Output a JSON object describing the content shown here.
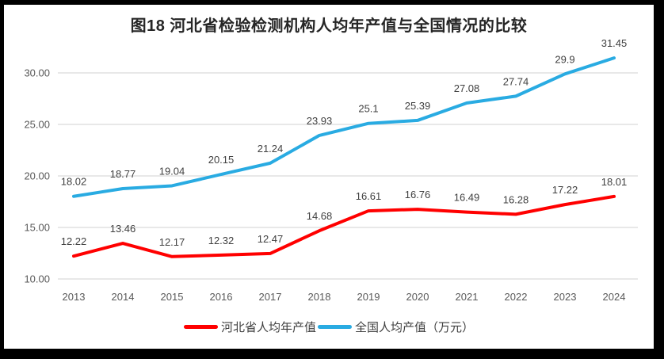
{
  "chart_data": {
    "type": "line",
    "title": "图18  河北省检验检测机构人均年产值与全国情况的比较",
    "categories": [
      "2013",
      "2014",
      "2015",
      "2016",
      "2017",
      "2018",
      "2019",
      "2020",
      "2021",
      "2022",
      "2023",
      "2024"
    ],
    "series": [
      {
        "name": "河北省人均年产值",
        "color": "#FF0000",
        "values": [
          12.22,
          13.46,
          12.17,
          12.32,
          12.47,
          14.68,
          16.61,
          16.76,
          16.49,
          16.28,
          17.22,
          18.01
        ]
      },
      {
        "name": "全国人均产值（万元）",
        "color": "#29ABE2",
        "values": [
          18.02,
          18.77,
          19.04,
          20.15,
          21.24,
          23.93,
          25.1,
          25.39,
          27.08,
          27.74,
          29.9,
          31.45
        ]
      }
    ],
    "ylim": [
      10,
      30
    ],
    "y_ticks": [
      10,
      15,
      20,
      25,
      30
    ],
    "y_tick_labels": [
      "10.00",
      "15.00",
      "20.00",
      "25.00",
      "30.00"
    ],
    "grid": true,
    "data_labels": true,
    "legend_position": "bottom"
  },
  "colors": {
    "frame_border": "#000000",
    "background": "#ffffff",
    "gridline": "#D9D9D9",
    "tick_label": "#595959",
    "data_label": "#404040",
    "title": "#262626"
  }
}
